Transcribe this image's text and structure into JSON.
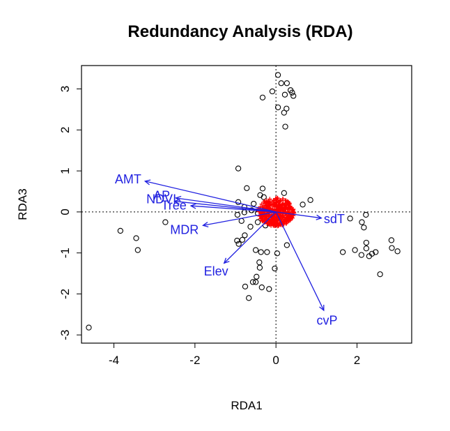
{
  "chart_data": {
    "type": "scatter",
    "title": "Redundancy Analysis (RDA)",
    "xlabel": "RDA1",
    "ylabel": "RDA3",
    "xlim": [
      -4.8,
      3.35
    ],
    "ylim": [
      -3.2,
      3.57
    ],
    "xticks": [
      -4,
      -2,
      0,
      2
    ],
    "yticks": [
      -3,
      -2,
      -1,
      0,
      1,
      2,
      3
    ],
    "zero_lines": true,
    "series": [
      {
        "role": "sites",
        "marker": "open-circle",
        "color": "#000000",
        "points": [
          [
            0.05,
            3.34
          ],
          [
            0.13,
            3.14
          ],
          [
            0.27,
            3.14
          ],
          [
            -0.09,
            2.94
          ],
          [
            0.36,
            2.97
          ],
          [
            0.4,
            2.91
          ],
          [
            0.22,
            2.86
          ],
          [
            0.43,
            2.83
          ],
          [
            -0.33,
            2.79
          ],
          [
            0.05,
            2.55
          ],
          [
            0.26,
            2.52
          ],
          [
            0.2,
            2.42
          ],
          [
            0.23,
            2.08
          ],
          [
            -0.93,
            1.06
          ],
          [
            -0.72,
            0.58
          ],
          [
            -0.33,
            0.57
          ],
          [
            -0.39,
            0.41
          ],
          [
            0.2,
            0.46
          ],
          [
            -0.3,
            0.36
          ],
          [
            0.85,
            0.29
          ],
          [
            0.66,
            0.18
          ],
          [
            -0.93,
            0.24
          ],
          [
            -0.78,
            0.12
          ],
          [
            -0.55,
            0.2
          ],
          [
            -0.6,
            0.04
          ],
          [
            -0.78,
            -0.01
          ],
          [
            -0.95,
            -0.07
          ],
          [
            -0.45,
            -0.03
          ],
          [
            -0.85,
            -0.22
          ],
          [
            -0.2,
            -0.23
          ],
          [
            -0.63,
            -0.36
          ],
          [
            -0.45,
            -0.25
          ],
          [
            -0.26,
            -0.33
          ],
          [
            -0.77,
            -0.57
          ],
          [
            -0.96,
            -0.7
          ],
          [
            -0.83,
            -0.68
          ],
          [
            -0.92,
            -0.78
          ],
          [
            -0.5,
            -0.93
          ],
          [
            -0.37,
            -0.98
          ],
          [
            -0.22,
            -0.98
          ],
          [
            0.03,
            -1.01
          ],
          [
            -0.41,
            -1.23
          ],
          [
            -0.4,
            -1.36
          ],
          [
            -0.03,
            -1.38
          ],
          [
            -0.48,
            -1.58
          ],
          [
            -0.5,
            -1.71
          ],
          [
            -0.57,
            -1.71
          ],
          [
            -0.76,
            -1.82
          ],
          [
            -0.35,
            -1.84
          ],
          [
            -0.17,
            -1.88
          ],
          [
            -0.67,
            -2.1
          ],
          [
            0.27,
            -0.81
          ],
          [
            1.65,
            -0.98
          ],
          [
            1.95,
            -0.93
          ],
          [
            1.83,
            -0.16
          ],
          [
            2.12,
            -0.25
          ],
          [
            2.22,
            -0.07
          ],
          [
            2.17,
            -0.38
          ],
          [
            2.23,
            -0.75
          ],
          [
            2.11,
            -1.05
          ],
          [
            2.23,
            -0.89
          ],
          [
            2.3,
            -1.08
          ],
          [
            2.37,
            -1.02
          ],
          [
            2.46,
            -0.98
          ],
          [
            2.57,
            -1.52
          ],
          [
            2.85,
            -0.69
          ],
          [
            2.86,
            -0.88
          ],
          [
            3.0,
            -0.96
          ],
          [
            -3.84,
            -0.46
          ],
          [
            -3.45,
            -0.64
          ],
          [
            -3.41,
            -0.93
          ],
          [
            -2.73,
            -0.25
          ],
          [
            -4.62,
            -2.82
          ]
        ]
      },
      {
        "role": "species",
        "marker": "plus",
        "color": "#ff0000",
        "center": [
          0.0,
          0.0
        ],
        "spread": [
          0.45,
          0.35
        ]
      }
    ],
    "vectors": [
      {
        "label": "AMT",
        "x": -3.23,
        "y": 0.75,
        "label_x": -3.65,
        "label_y": 0.8
      },
      {
        "label": "AP",
        "x": -2.47,
        "y": 0.34,
        "label_x": -2.82,
        "label_y": 0.4
      },
      {
        "label": "NDVI",
        "x": -2.5,
        "y": 0.26,
        "label_x": -2.83,
        "label_y": 0.31
      },
      {
        "label": "Tree",
        "x": -2.1,
        "y": 0.15,
        "label_x": -2.52,
        "label_y": 0.16
      },
      {
        "label": "MDR",
        "x": -1.8,
        "y": -0.33,
        "label_x": -2.26,
        "label_y": -0.44
      },
      {
        "label": "Elev",
        "x": -1.28,
        "y": -1.25,
        "label_x": -1.48,
        "label_y": -1.45
      },
      {
        "label": "cvP",
        "x": 1.18,
        "y": -2.4,
        "label_x": 1.26,
        "label_y": -2.65
      },
      {
        "label": "sdT",
        "x": 1.12,
        "y": -0.15,
        "label_x": 1.44,
        "label_y": -0.17
      }
    ]
  }
}
